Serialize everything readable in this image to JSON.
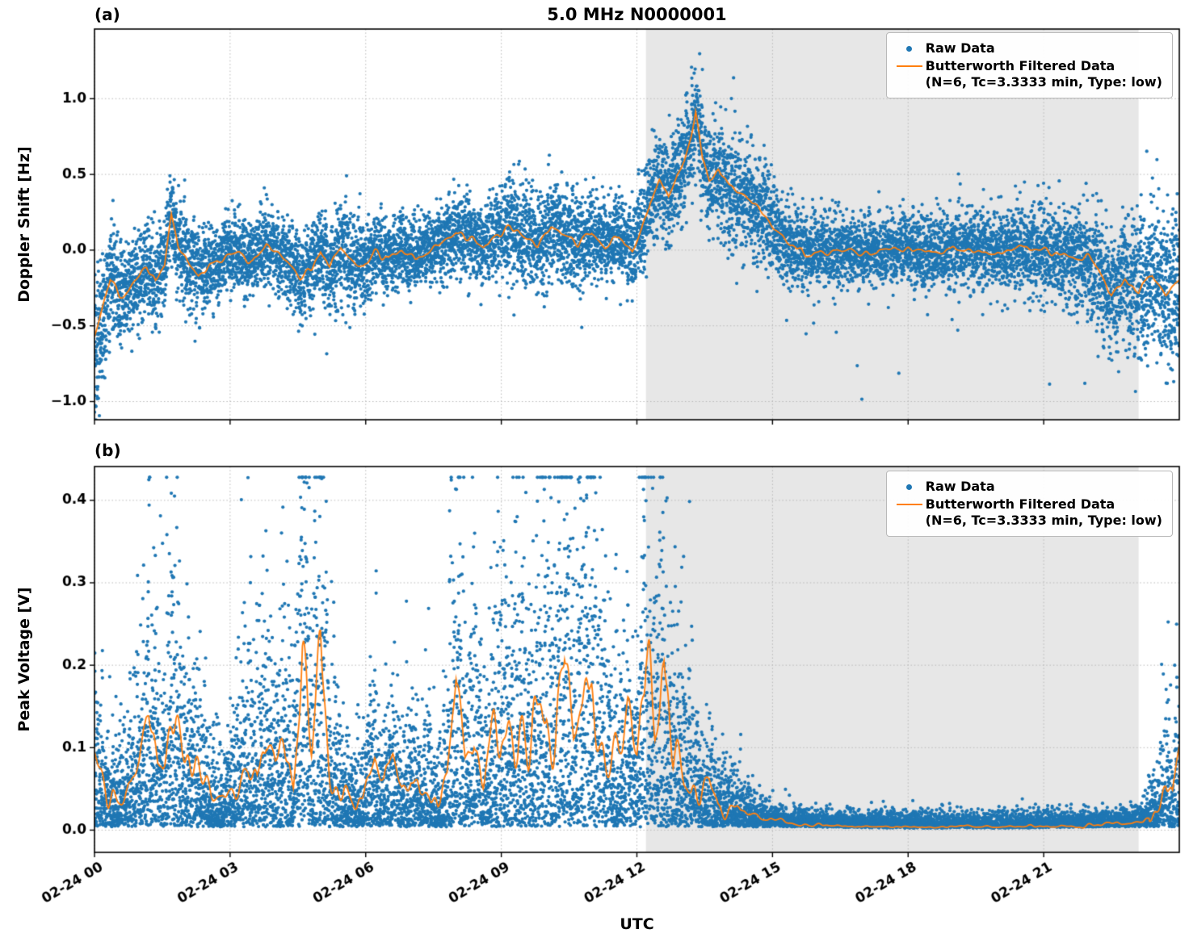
{
  "figure": {
    "title": "5.0 MHz N0000001",
    "xlabel": "UTC",
    "panel_a_label": "(a)",
    "panel_b_label": "(b)",
    "legend": {
      "raw": "Raw Data",
      "filtered_line1": "Butterworth Filtered Data",
      "filtered_line2": "(N=6, Tc=3.3333 min, Type: low)"
    },
    "colors": {
      "raw": "#1f77b4",
      "filtered": "#ff7f0e",
      "shade": "#e7e7e7",
      "grid": "#b8b8b8",
      "axis": "#000000"
    }
  },
  "chart_data": [
    {
      "type": "scatter",
      "panel": "a",
      "title": "5.0 MHz N0000001",
      "ylabel": "Doppler Shift [Hz]",
      "xlabel": "UTC",
      "ylim": [
        -1.12,
        1.46
      ],
      "yticks": [
        -1.0,
        -0.5,
        0.0,
        0.5,
        1.0
      ],
      "ytick_labels": [
        "−1.0",
        "−0.5",
        "0.0",
        "0.5",
        "1.0"
      ],
      "x_hours_range": [
        0,
        24
      ],
      "xticks_hours": [
        0,
        3,
        6,
        9,
        12,
        15,
        18,
        21
      ],
      "xtick_labels": [
        "02-24 00",
        "02-24 03",
        "02-24 06",
        "02-24 09",
        "02-24 12",
        "02-24 15",
        "02-24 18",
        "02-24 21"
      ],
      "shaded_region_hours": [
        12.2,
        23.1
      ],
      "grid": "dotted",
      "legend_position": "upper right",
      "raw_model": "additive-gaussian",
      "series": [
        {
          "name": "Raw Data",
          "type": "scatter",
          "color": "#1f77b4"
        },
        {
          "name": "Butterworth Filtered Data (N=6, Tc=3.3333 min, Type: low)",
          "type": "line",
          "color": "#ff7f0e",
          "control_points_t_hours": [
            0,
            0.15,
            0.35,
            0.55,
            0.75,
            0.95,
            1.15,
            1.35,
            1.55,
            1.7,
            1.85,
            2.05,
            2.3,
            2.6,
            2.9,
            3.2,
            3.5,
            3.8,
            4.05,
            4.3,
            4.55,
            4.8,
            5.0,
            5.2,
            5.45,
            5.7,
            5.95,
            6.2,
            6.5,
            6.8,
            7.1,
            7.4,
            7.7,
            8.0,
            8.3,
            8.6,
            8.9,
            9.2,
            9.5,
            9.8,
            10.1,
            10.4,
            10.7,
            11.0,
            11.3,
            11.6,
            11.9,
            12.1,
            12.3,
            12.5,
            12.7,
            12.9,
            13.05,
            13.2,
            13.3,
            13.45,
            13.6,
            13.8,
            14.0,
            14.2,
            14.5,
            14.8,
            15.1,
            15.4,
            15.7,
            16.0,
            16.5,
            17.0,
            17.5,
            18.0,
            18.5,
            19.0,
            19.5,
            20.0,
            20.5,
            21.0,
            21.5,
            21.9,
            22.2,
            22.5,
            22.8,
            23.1,
            23.4,
            23.7,
            24.0
          ],
          "control_points_value": [
            -0.55,
            -0.4,
            -0.2,
            -0.3,
            -0.28,
            -0.18,
            -0.12,
            -0.22,
            -0.1,
            0.24,
            0.02,
            -0.08,
            -0.16,
            -0.1,
            -0.04,
            -0.02,
            -0.08,
            0.04,
            -0.02,
            -0.08,
            -0.18,
            -0.12,
            0.0,
            -0.12,
            0.02,
            -0.06,
            -0.1,
            -0.02,
            -0.06,
            0.0,
            -0.05,
            0.02,
            0.05,
            0.13,
            0.08,
            0.03,
            0.1,
            0.16,
            0.08,
            0.04,
            0.15,
            0.09,
            0.04,
            0.12,
            0.02,
            0.1,
            0.0,
            0.12,
            0.32,
            0.45,
            0.33,
            0.5,
            0.58,
            0.75,
            0.92,
            0.6,
            0.45,
            0.52,
            0.42,
            0.38,
            0.33,
            0.24,
            0.12,
            0.04,
            0.0,
            -0.02,
            0.01,
            -0.02,
            0.0,
            0.02,
            -0.02,
            0.0,
            0.01,
            -0.02,
            0.0,
            -0.01,
            -0.03,
            -0.05,
            -0.12,
            -0.3,
            -0.18,
            -0.28,
            -0.15,
            -0.3,
            -0.22
          ]
        }
      ],
      "raw_scatter_envelope": {
        "t_hours": [
          0,
          0.3,
          0.8,
          1.5,
          2.2,
          3.0,
          4.0,
          5.0,
          5.6,
          6.5,
          7.5,
          8.5,
          9.5,
          10.5,
          11.5,
          12.2,
          12.8,
          13.4,
          14.2,
          15.0,
          15.6,
          17.0,
          19.0,
          20.5,
          21.5,
          22.3,
          23.0,
          23.6,
          24.0
        ],
        "spread": [
          0.26,
          0.2,
          0.16,
          0.14,
          0.16,
          0.12,
          0.13,
          0.15,
          0.16,
          0.12,
          0.12,
          0.14,
          0.16,
          0.16,
          0.13,
          0.15,
          0.17,
          0.18,
          0.19,
          0.16,
          0.12,
          0.11,
          0.12,
          0.14,
          0.15,
          0.2,
          0.24,
          0.26,
          0.24
        ]
      }
    },
    {
      "type": "scatter",
      "panel": "b",
      "ylabel": "Peak Voltage [V]",
      "xlabel": "UTC",
      "ylim": [
        -0.027,
        0.441
      ],
      "yticks": [
        0.0,
        0.1,
        0.2,
        0.3,
        0.4
      ],
      "ytick_labels": [
        "0.0",
        "0.1",
        "0.2",
        "0.3",
        "0.4"
      ],
      "x_hours_range": [
        0,
        24
      ],
      "xticks_hours": [
        0,
        3,
        6,
        9,
        12,
        15,
        18,
        21
      ],
      "xtick_labels": [
        "02-24 00",
        "02-24 03",
        "02-24 06",
        "02-24 09",
        "02-24 12",
        "02-24 15",
        "02-24 18",
        "02-24 21"
      ],
      "shaded_region_hours": [
        12.2,
        23.1
      ],
      "grid": "dotted",
      "legend_position": "upper right",
      "raw_model": "multiplicative-positive",
      "series": [
        {
          "name": "Raw Data",
          "type": "scatter",
          "color": "#1f77b4"
        },
        {
          "name": "Butterworth Filtered Data (N=6, Tc=3.3333 min, Type: low)",
          "type": "line",
          "color": "#ff7f0e",
          "control_points_t_hours": [
            0,
            0.2,
            0.5,
            0.8,
            1.0,
            1.2,
            1.4,
            1.6,
            1.8,
            2.0,
            2.2,
            2.4,
            2.6,
            2.8,
            3.0,
            3.2,
            3.4,
            3.6,
            3.8,
            4.0,
            4.2,
            4.4,
            4.6,
            4.8,
            5.0,
            5.2,
            5.4,
            5.6,
            5.8,
            6.0,
            6.2,
            6.4,
            6.6,
            6.8,
            7.0,
            7.2,
            7.4,
            7.6,
            7.8,
            8.0,
            8.2,
            8.4,
            8.6,
            8.8,
            9.0,
            9.2,
            9.4,
            9.6,
            9.8,
            10.0,
            10.2,
            10.4,
            10.6,
            10.8,
            11.0,
            11.2,
            11.4,
            11.6,
            11.8,
            12.0,
            12.2,
            12.4,
            12.6,
            12.8,
            13.0,
            13.2,
            13.4,
            13.6,
            13.8,
            14.0,
            14.5,
            15.0,
            15.5,
            16.0,
            17.0,
            18.0,
            19.0,
            20.0,
            21.0,
            22.0,
            22.8,
            23.2,
            23.5,
            23.7,
            23.85,
            24.0
          ],
          "control_points_value": [
            0.07,
            0.05,
            0.04,
            0.05,
            0.08,
            0.13,
            0.09,
            0.11,
            0.14,
            0.1,
            0.08,
            0.06,
            0.04,
            0.03,
            0.04,
            0.07,
            0.1,
            0.07,
            0.12,
            0.08,
            0.1,
            0.06,
            0.21,
            0.1,
            0.2,
            0.08,
            0.05,
            0.04,
            0.03,
            0.05,
            0.08,
            0.05,
            0.07,
            0.05,
            0.06,
            0.04,
            0.05,
            0.03,
            0.06,
            0.17,
            0.08,
            0.12,
            0.06,
            0.1,
            0.15,
            0.1,
            0.13,
            0.1,
            0.12,
            0.16,
            0.12,
            0.23,
            0.12,
            0.16,
            0.2,
            0.12,
            0.1,
            0.08,
            0.11,
            0.09,
            0.2,
            0.12,
            0.18,
            0.08,
            0.1,
            0.06,
            0.04,
            0.05,
            0.03,
            0.03,
            0.02,
            0.012,
            0.008,
            0.006,
            0.005,
            0.004,
            0.004,
            0.004,
            0.005,
            0.006,
            0.008,
            0.012,
            0.03,
            0.06,
            0.04,
            0.08
          ]
        }
      ]
    }
  ]
}
